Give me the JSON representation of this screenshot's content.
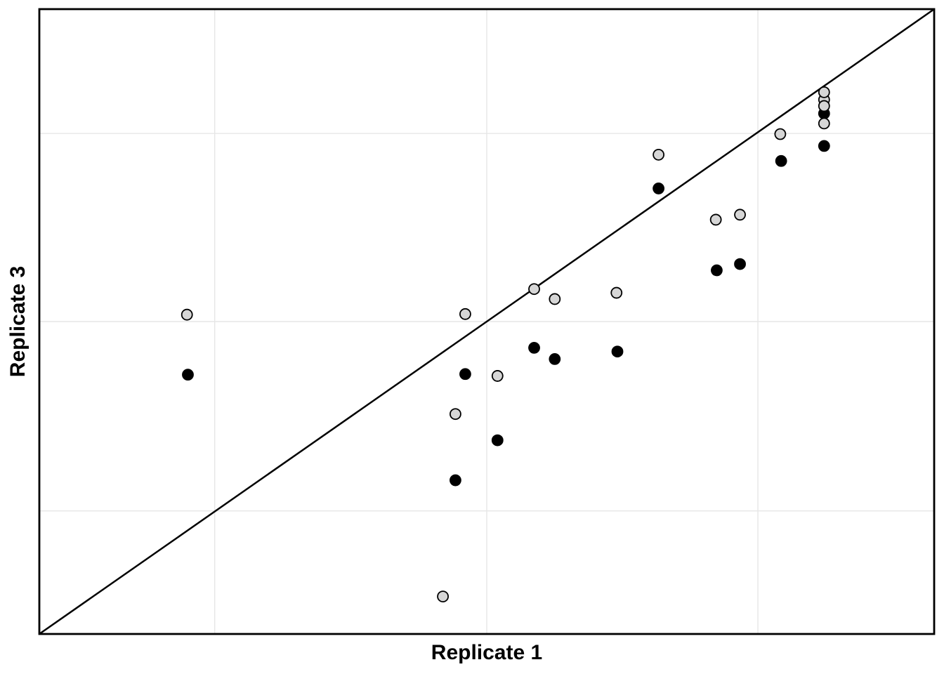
{
  "chart_data": {
    "type": "scatter",
    "title": "",
    "xlabel": "Replicate 1",
    "ylabel": "Replicate 3",
    "tick_labels_shown": false,
    "coordinate_system": "normalized panel fractions 0-1 (no numeric tick labels are rendered in the figure)",
    "xlim": [
      0,
      1
    ],
    "ylim": [
      0,
      1
    ],
    "grid": {
      "x": [
        0.196,
        0.5,
        0.803
      ],
      "y": [
        0.197,
        0.5,
        0.801
      ],
      "visible": true
    },
    "identity_line": {
      "from": [
        0,
        0
      ],
      "to": [
        1,
        1
      ]
    },
    "legend": "none",
    "series_meta": [
      {
        "name": "light",
        "marker": "circle",
        "fill": "#d6d6d6",
        "stroke": "#000000"
      },
      {
        "name": "dark",
        "marker": "circle",
        "fill": "#000000",
        "stroke": "#000000"
      }
    ],
    "points": [
      {
        "x": 0.165,
        "y": 0.511,
        "series": "light"
      },
      {
        "x": 0.166,
        "y": 0.415,
        "series": "dark"
      },
      {
        "x": 0.451,
        "y": 0.06,
        "series": "light"
      },
      {
        "x": 0.465,
        "y": 0.352,
        "series": "light"
      },
      {
        "x": 0.465,
        "y": 0.246,
        "series": "dark"
      },
      {
        "x": 0.476,
        "y": 0.512,
        "series": "light"
      },
      {
        "x": 0.476,
        "y": 0.416,
        "series": "dark"
      },
      {
        "x": 0.512,
        "y": 0.413,
        "series": "light"
      },
      {
        "x": 0.512,
        "y": 0.31,
        "series": "dark"
      },
      {
        "x": 0.553,
        "y": 0.552,
        "series": "light"
      },
      {
        "x": 0.553,
        "y": 0.458,
        "series": "dark"
      },
      {
        "x": 0.576,
        "y": 0.536,
        "series": "light"
      },
      {
        "x": 0.576,
        "y": 0.44,
        "series": "dark"
      },
      {
        "x": 0.645,
        "y": 0.546,
        "series": "light"
      },
      {
        "x": 0.646,
        "y": 0.452,
        "series": "dark"
      },
      {
        "x": 0.692,
        "y": 0.767,
        "series": "light"
      },
      {
        "x": 0.692,
        "y": 0.713,
        "series": "dark"
      },
      {
        "x": 0.756,
        "y": 0.663,
        "series": "light"
      },
      {
        "x": 0.757,
        "y": 0.582,
        "series": "dark"
      },
      {
        "x": 0.783,
        "y": 0.671,
        "series": "light"
      },
      {
        "x": 0.783,
        "y": 0.592,
        "series": "dark"
      },
      {
        "x": 0.828,
        "y": 0.8,
        "series": "light"
      },
      {
        "x": 0.829,
        "y": 0.757,
        "series": "dark"
      },
      {
        "x": 0.877,
        "y": 0.855,
        "series": "light"
      },
      {
        "x": 0.877,
        "y": 0.833,
        "series": "dark"
      },
      {
        "x": 0.877,
        "y": 0.867,
        "series": "light"
      },
      {
        "x": 0.877,
        "y": 0.845,
        "series": "light"
      },
      {
        "x": 0.877,
        "y": 0.817,
        "series": "light"
      },
      {
        "x": 0.877,
        "y": 0.781,
        "series": "dark"
      }
    ]
  },
  "colors": {
    "background": "#ffffff",
    "panel_border": "#000000",
    "gridline": "#e6e6e6",
    "identity_line": "#000000",
    "marker_light_fill": "#d6d6d6",
    "marker_dark_fill": "#000000",
    "marker_stroke": "#000000"
  }
}
